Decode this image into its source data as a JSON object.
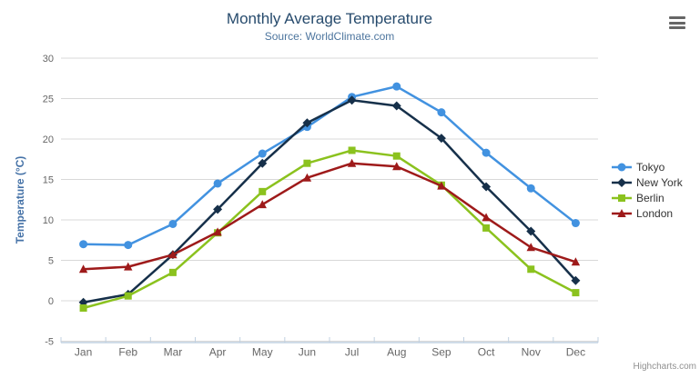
{
  "header": {
    "title": "Monthly Average Temperature",
    "subtitle": "Source: WorldClimate.com"
  },
  "credits": {
    "label": "Highcharts.com"
  },
  "colors": {
    "title": "#274b6d",
    "subtitle": "#4d759e",
    "axis_label": "#666666",
    "y_axis_title": "#4572a7",
    "grid": "#d8d8d8",
    "axis_line": "#c0d0e0",
    "legend_text": "#333333",
    "credits_text": "#909090",
    "menu_icon": "#666666",
    "background": "#ffffff"
  },
  "chart_data": {
    "type": "line",
    "title": "Monthly Average Temperature",
    "subtitle": "Source: WorldClimate.com",
    "xlabel": "",
    "ylabel": "Temperature (°C)",
    "categories": [
      "Jan",
      "Feb",
      "Mar",
      "Apr",
      "May",
      "Jun",
      "Jul",
      "Aug",
      "Sep",
      "Oct",
      "Nov",
      "Dec"
    ],
    "ylim": [
      -5,
      30
    ],
    "ytick_interval": 5,
    "grid": true,
    "legend_position": "right",
    "series": [
      {
        "name": "Tokyo",
        "color": "#4292e0",
        "marker": "circle",
        "values": [
          7.0,
          6.9,
          9.5,
          14.5,
          18.2,
          21.5,
          25.2,
          26.5,
          23.3,
          18.3,
          13.9,
          9.6
        ]
      },
      {
        "name": "New York",
        "color": "#16304a",
        "marker": "diamond",
        "values": [
          -0.2,
          0.8,
          5.7,
          11.3,
          17.0,
          22.0,
          24.8,
          24.1,
          20.1,
          14.1,
          8.6,
          2.5
        ]
      },
      {
        "name": "Berlin",
        "color": "#8bc21e",
        "marker": "square",
        "values": [
          -0.9,
          0.6,
          3.5,
          8.4,
          13.5,
          17.0,
          18.6,
          17.9,
          14.3,
          9.0,
          3.9,
          1.0
        ]
      },
      {
        "name": "London",
        "color": "#9e1a1a",
        "marker": "triangle",
        "values": [
          3.9,
          4.2,
          5.7,
          8.5,
          11.9,
          15.2,
          17.0,
          16.6,
          14.2,
          10.3,
          6.6,
          4.8
        ]
      }
    ]
  }
}
